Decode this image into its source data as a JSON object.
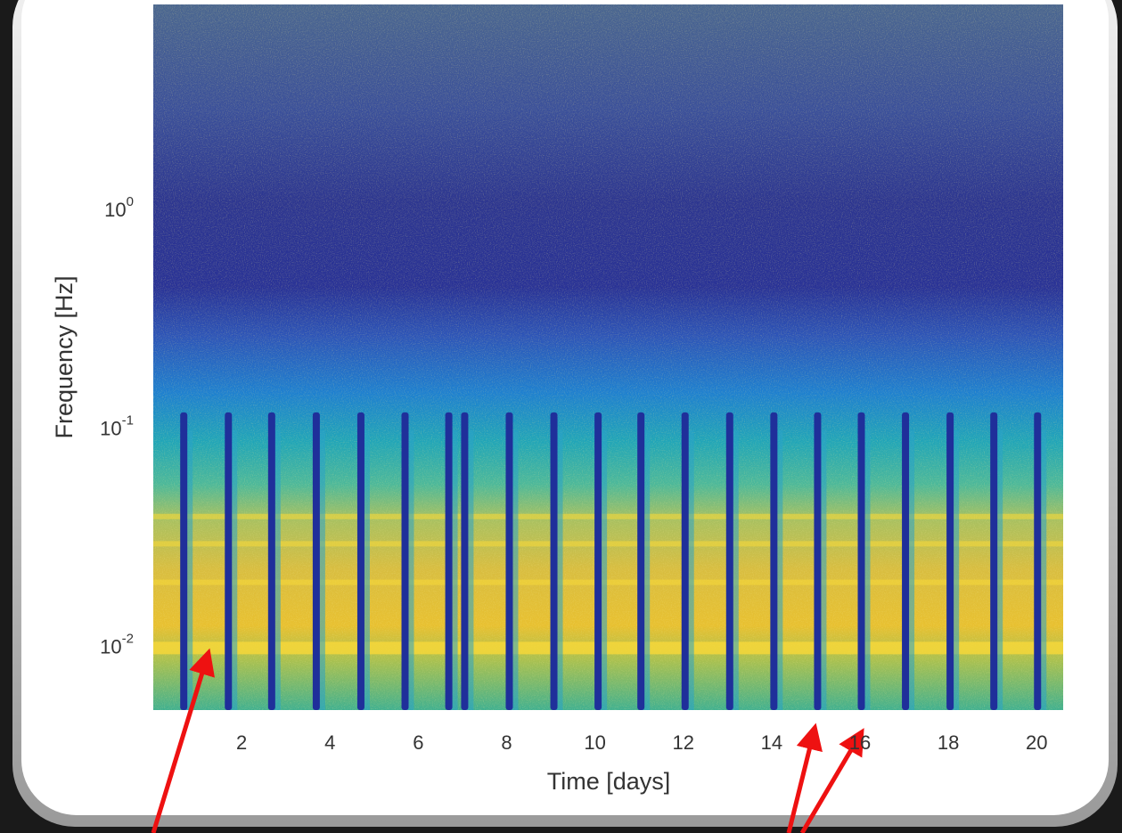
{
  "chart_data": {
    "type": "spectrogram",
    "x_label": "Time [days]",
    "y_label": "Frequency [Hz]",
    "xlim": [
      0,
      20.6
    ],
    "xticks": [
      2,
      4,
      6,
      8,
      10,
      12,
      14,
      16,
      18,
      20
    ],
    "ylim": [
      0.0052,
      8.85
    ],
    "log_y": true,
    "yticks": [
      {
        "value": 0.01,
        "label": "10",
        "exponent": "-2"
      },
      {
        "value": 0.1,
        "label": "10",
        "exponent": "-1"
      },
      {
        "value": 1,
        "label": "10",
        "exponent": "0"
      }
    ],
    "events": [
      0.69,
      1.7,
      2.68,
      3.69,
      4.7,
      5.7,
      6.69,
      7.05,
      8.06,
      9.07,
      10.07,
      11.04,
      12.04,
      13.05,
      14.05,
      15.04,
      16.03,
      17.03,
      18.04,
      19.03,
      20.02
    ],
    "event_max_freq": 0.12,
    "event_color": "#1f2f9a",
    "lines": [
      0.01,
      0.02,
      0.03,
      0.04
    ],
    "line_color": "#f6d83a"
  }
}
